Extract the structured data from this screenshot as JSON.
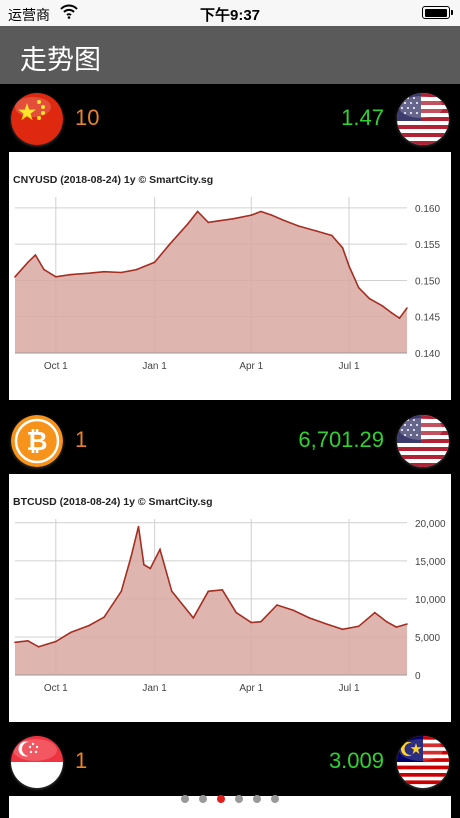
{
  "status_bar": {
    "carrier": "运营商",
    "time": "下午9:37",
    "battery_level": 1.0
  },
  "nav": {
    "title": "走势图"
  },
  "pairs": [
    {
      "base_flag": "china-flag-icon",
      "quote_flag": "usa-flag-icon",
      "amount": "10",
      "converted": "1.47",
      "chart_data": {
        "type": "area",
        "title": "CNYUSD (2018-08-24) 1y",
        "source": "© SmartCity.sg",
        "x_tick_labels": [
          "Oct 1",
          "Jan 1",
          "Apr 1",
          "Jul 1"
        ],
        "y_tick_labels": [
          "0.160",
          "0.155",
          "0.150",
          "0.145",
          "0.140"
        ],
        "ylim": [
          0.14,
          0.1615
        ],
        "x": [
          "2017-08-24",
          "2017-09-05",
          "2017-09-12",
          "2017-09-20",
          "2017-10-01",
          "2017-10-15",
          "2017-11-01",
          "2017-11-15",
          "2017-12-01",
          "2017-12-15",
          "2018-01-01",
          "2018-01-15",
          "2018-02-01",
          "2018-02-10",
          "2018-02-20",
          "2018-03-01",
          "2018-03-15",
          "2018-04-01",
          "2018-04-10",
          "2018-04-20",
          "2018-05-01",
          "2018-05-15",
          "2018-06-01",
          "2018-06-15",
          "2018-06-25",
          "2018-07-01",
          "2018-07-10",
          "2018-07-20",
          "2018-08-01",
          "2018-08-10",
          "2018-08-17",
          "2018-08-24"
        ],
        "values": [
          0.1505,
          0.1525,
          0.1535,
          0.1515,
          0.1505,
          0.1508,
          0.151,
          0.1512,
          0.1511,
          0.1515,
          0.1525,
          0.155,
          0.1578,
          0.1595,
          0.158,
          0.1582,
          0.1585,
          0.159,
          0.1595,
          0.159,
          0.1583,
          0.1575,
          0.1568,
          0.1562,
          0.1545,
          0.152,
          0.149,
          0.1475,
          0.1465,
          0.1455,
          0.1448,
          0.1462
        ],
        "grid": true,
        "colors": {
          "fill": "#d9a8a2",
          "line": "#a42f22"
        }
      }
    },
    {
      "base_flag": "bitcoin-icon",
      "quote_flag": "usa-flag-icon",
      "amount": "1",
      "converted": "6,701.29",
      "chart_data": {
        "type": "area",
        "title": "BTCUSD (2018-08-24) 1y",
        "source": "© SmartCity.sg",
        "x_tick_labels": [
          "Oct 1",
          "Jan 1",
          "Apr 1",
          "Jul 1"
        ],
        "y_tick_labels": [
          "20,000",
          "15,000",
          "10,000",
          "5,000",
          "0"
        ],
        "ylim": [
          0,
          20500
        ],
        "x": [
          "2017-08-24",
          "2017-09-05",
          "2017-09-15",
          "2017-10-01",
          "2017-10-15",
          "2017-11-01",
          "2017-11-15",
          "2017-12-01",
          "2017-12-10",
          "2017-12-17",
          "2017-12-22",
          "2017-12-28",
          "2018-01-06",
          "2018-01-17",
          "2018-02-06",
          "2018-02-20",
          "2018-03-05",
          "2018-03-18",
          "2018-04-01",
          "2018-04-10",
          "2018-04-25",
          "2018-05-10",
          "2018-05-25",
          "2018-06-10",
          "2018-06-25",
          "2018-07-10",
          "2018-07-25",
          "2018-08-05",
          "2018-08-14",
          "2018-08-24"
        ],
        "values": [
          4300,
          4500,
          3700,
          4400,
          5600,
          6500,
          7600,
          11000,
          15500,
          19500,
          14500,
          14000,
          16500,
          11000,
          7500,
          11000,
          11200,
          8200,
          6900,
          7000,
          9200,
          8500,
          7500,
          6700,
          6000,
          6400,
          8200,
          7000,
          6300,
          6700
        ],
        "grid": true,
        "colors": {
          "fill": "#d9a8a2",
          "line": "#a42f22"
        }
      }
    },
    {
      "base_flag": "singapore-flag-icon",
      "quote_flag": "malaysia-flag-icon",
      "amount": "1",
      "converted": "3.009"
    }
  ],
  "pager": {
    "count": 6,
    "active_index": 2
  }
}
